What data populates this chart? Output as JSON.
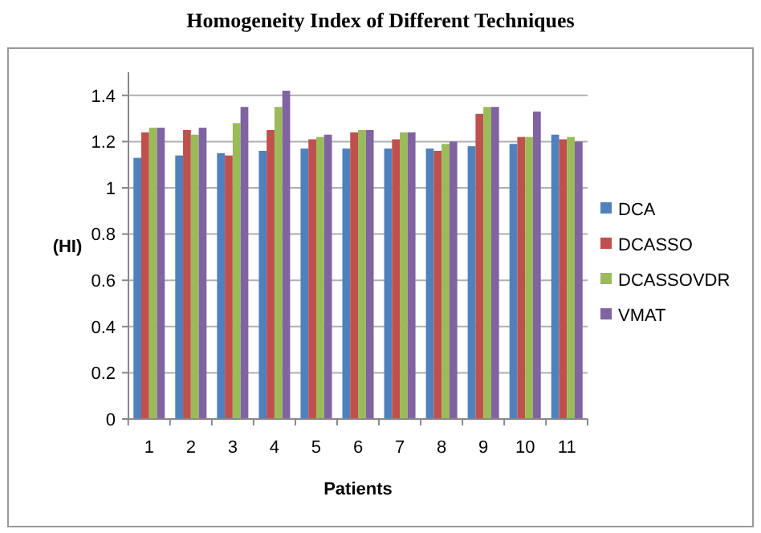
{
  "chart_data": {
    "type": "bar",
    "title": "Homogeneity Index of Different Techniques",
    "xlabel": "Patients",
    "ylabel": "(HI)",
    "categories": [
      "1",
      "2",
      "3",
      "4",
      "5",
      "6",
      "7",
      "8",
      "9",
      "10",
      "11"
    ],
    "series": [
      {
        "name": "DCA",
        "color": "#4f81bd",
        "values": [
          1.13,
          1.14,
          1.15,
          1.16,
          1.17,
          1.17,
          1.17,
          1.17,
          1.18,
          1.19,
          1.23
        ]
      },
      {
        "name": "DCASSO",
        "color": "#c0504d",
        "values": [
          1.24,
          1.25,
          1.14,
          1.25,
          1.21,
          1.24,
          1.21,
          1.16,
          1.32,
          1.22,
          1.21
        ]
      },
      {
        "name": "DCASSOVDR",
        "color": "#9bbb59",
        "values": [
          1.26,
          1.23,
          1.28,
          1.35,
          1.22,
          1.25,
          1.24,
          1.19,
          1.35,
          1.22,
          1.22
        ]
      },
      {
        "name": "VMAT",
        "color": "#8064a2",
        "values": [
          1.26,
          1.26,
          1.35,
          1.42,
          1.23,
          1.25,
          1.24,
          1.2,
          1.35,
          1.33,
          1.2
        ]
      }
    ],
    "ylim": [
      0,
      1.5
    ],
    "yticks": [
      0,
      {
        "value": 0.2,
        "label": "0.2"
      },
      {
        "value": 0.4,
        "label": "0.4"
      },
      {
        "value": 0.6,
        "label": "0.6"
      },
      {
        "value": 0.8,
        "label": "0.8"
      },
      1,
      {
        "value": 1.2,
        "label": "1.2"
      },
      {
        "value": 1.4,
        "label": "1.4"
      }
    ],
    "grid": "y",
    "legend": "right"
  }
}
